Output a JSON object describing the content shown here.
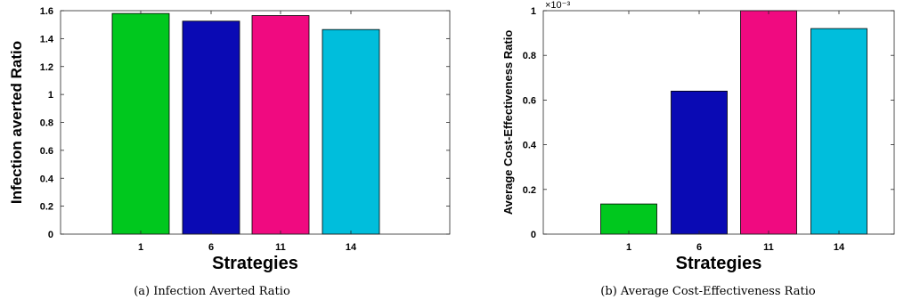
{
  "chart_data": [
    {
      "type": "bar",
      "caption": "(a) Infection Averted Ratio",
      "title": "",
      "xlabel": "Strategies",
      "ylabel": "Infection averted Ratio",
      "categories": [
        "1",
        "6",
        "11",
        "14"
      ],
      "values": [
        1.58,
        1.525,
        1.565,
        1.465
      ],
      "colors": [
        "#00c81e",
        "#0a0ab4",
        "#f00a80",
        "#00bedc"
      ],
      "ylim": [
        0,
        1.6
      ],
      "yticks": [
        0,
        0.2,
        0.4,
        0.6,
        0.8,
        1,
        1.2,
        1.4,
        1.6
      ],
      "ytick_labels": [
        "0",
        "0.2",
        "0.4",
        "0.6",
        "0.8",
        "1",
        "1.2",
        "1.4",
        "1.6"
      ],
      "grid": false,
      "legend": "none"
    },
    {
      "type": "bar",
      "caption": "(b) Average Cost-Effectiveness Ratio",
      "title": "",
      "xlabel": "Strategies",
      "ylabel": "Average Cost-Effectiveness Ratio",
      "categories": [
        "1",
        "6",
        "11",
        "14"
      ],
      "values": [
        0.000135,
        0.00064,
        0.001,
        0.00092
      ],
      "colors": [
        "#00c81e",
        "#0a0ab4",
        "#f00a80",
        "#00bedc"
      ],
      "ylim": [
        0,
        0.001
      ],
      "yticks": [
        0,
        0.0002,
        0.0004,
        0.0006,
        0.0008,
        0.001
      ],
      "ytick_labels": [
        "0",
        "0.2",
        "0.4",
        "0.6",
        "0.8",
        "1"
      ],
      "y_scale_factor": "×10⁻³",
      "grid": false,
      "legend": "none"
    }
  ]
}
